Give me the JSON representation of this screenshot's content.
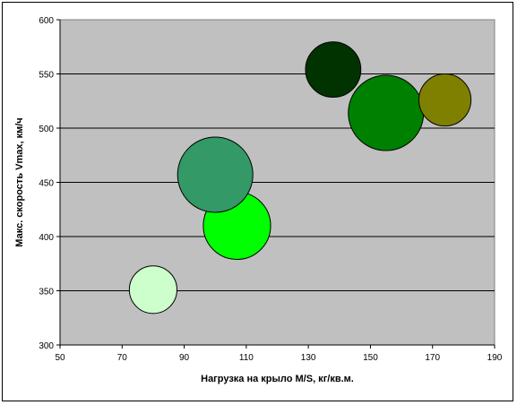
{
  "chart_data": {
    "type": "bubble",
    "title": "",
    "xlabel": "Нагрузка на крыло M/S, кг/кв.м.",
    "ylabel": "Макс. скорость Vmax, км/ч",
    "xlim": [
      50,
      190
    ],
    "ylim": [
      300,
      600
    ],
    "x_ticks": [
      50,
      70,
      90,
      110,
      130,
      150,
      170,
      190
    ],
    "y_ticks": [
      300,
      350,
      400,
      450,
      500,
      550,
      600
    ],
    "grid": "horizontal",
    "legend": "none",
    "plot_background": "#c0c0c0",
    "points": [
      {
        "x": 80,
        "y": 351,
        "size": 1.0,
        "color": "#ccffcc"
      },
      {
        "x": 107,
        "y": 410,
        "size": 2.0,
        "color": "#00ff00"
      },
      {
        "x": 100,
        "y": 457,
        "size": 2.5,
        "color": "#339966"
      },
      {
        "x": 138,
        "y": 554,
        "size": 1.35,
        "color": "#003300"
      },
      {
        "x": 155,
        "y": 514,
        "size": 2.5,
        "color": "#008000"
      },
      {
        "x": 174,
        "y": 526,
        "size": 1.2,
        "color": "#808000"
      }
    ]
  }
}
